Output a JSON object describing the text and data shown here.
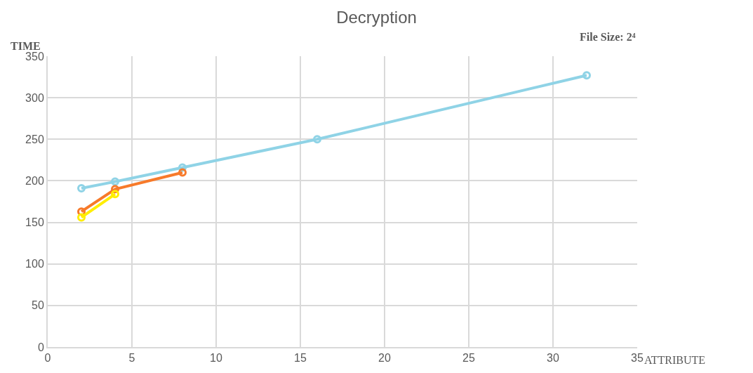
{
  "chart_data": {
    "type": "line",
    "title": "Decryption",
    "xlabel": "ATTRIBUTE",
    "ylabel": "TIME",
    "annotations": [
      "File Size: 2⁴"
    ],
    "xlim": [
      0,
      35
    ],
    "xticks": [
      0,
      5,
      10,
      15,
      20,
      25,
      30,
      35
    ],
    "ylim": [
      0,
      350
    ],
    "yticks": [
      0,
      50,
      100,
      150,
      200,
      250,
      300,
      350
    ],
    "grid": true,
    "marker": "circle",
    "line_style": "solid",
    "series": [
      {
        "color": "#8fd3e6",
        "x": [
          2,
          4,
          8,
          16,
          32
        ],
        "values": [
          191,
          199,
          216,
          250,
          327
        ]
      },
      {
        "color": "#f77a2a",
        "x": [
          2,
          4,
          8
        ],
        "values": [
          163,
          190,
          210
        ]
      },
      {
        "color": "#ffee00",
        "x": [
          2,
          4
        ],
        "values": [
          156,
          184
        ]
      }
    ]
  }
}
